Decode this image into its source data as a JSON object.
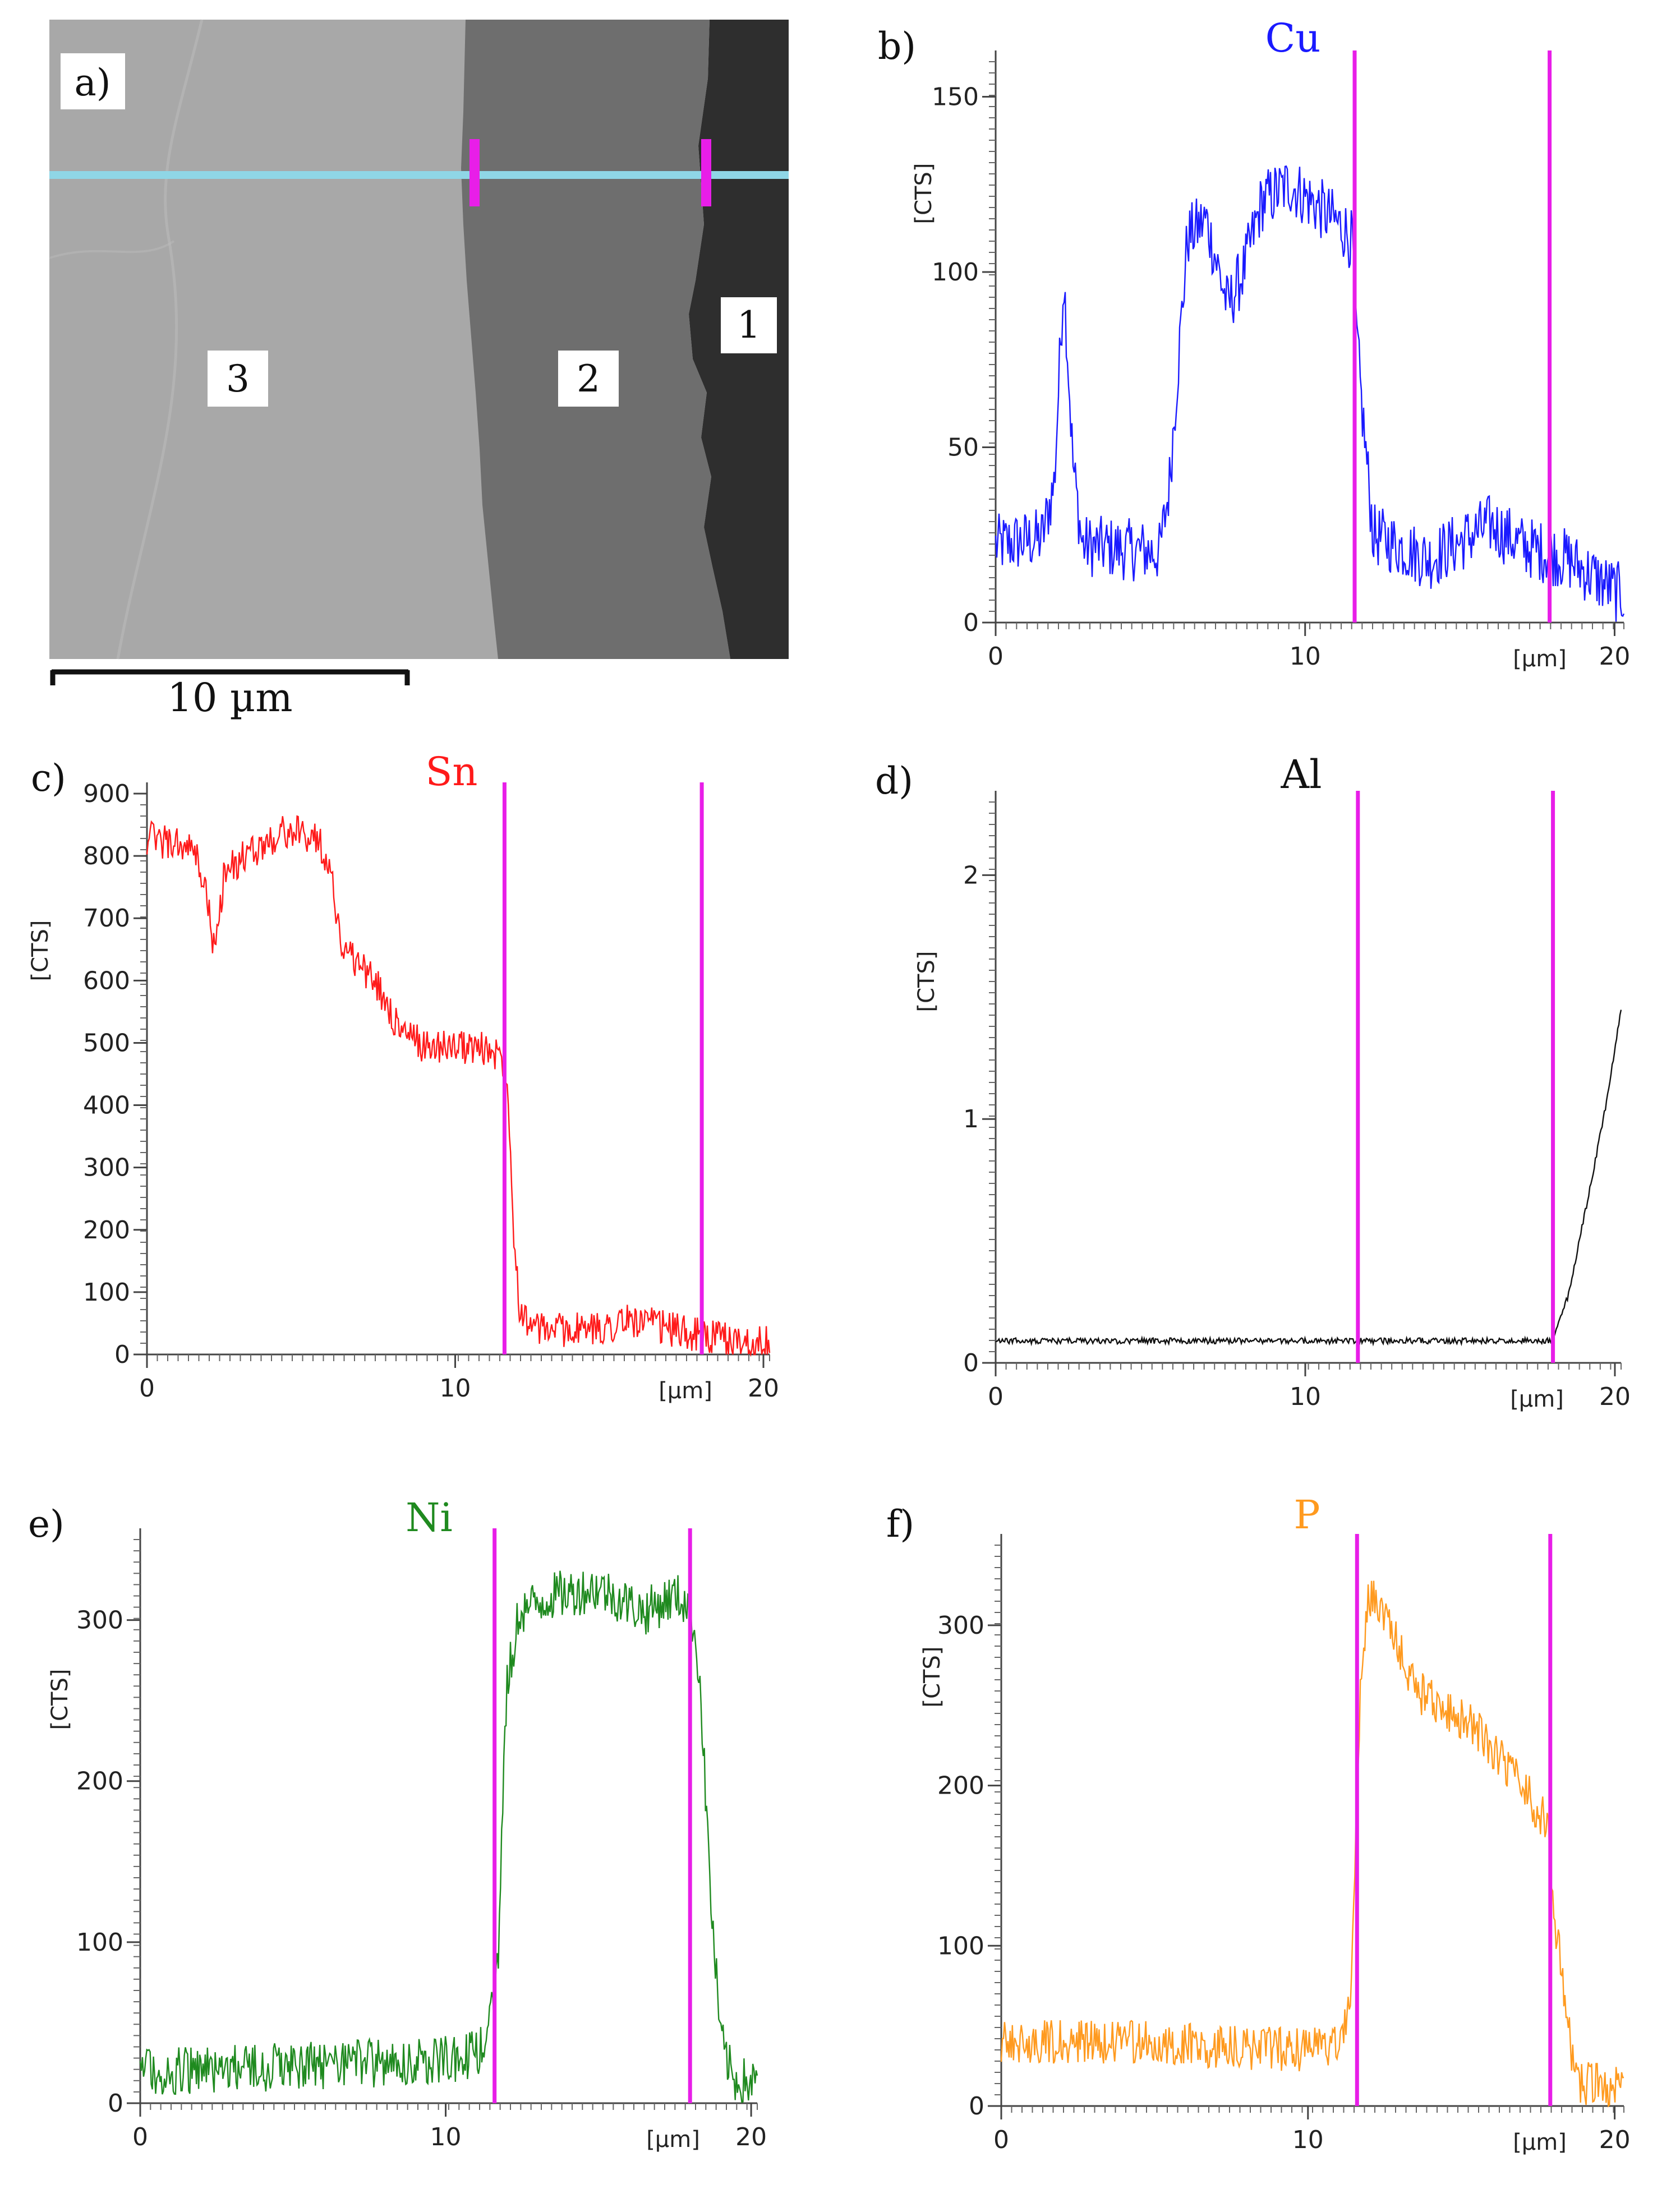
{
  "micrograph": {
    "panel_label": "a)",
    "regions": [
      {
        "label": "3",
        "color": "#a8a8a8"
      },
      {
        "label": "2",
        "color": "#6e6e6e"
      },
      {
        "label": "1",
        "color": "#2e2e2e"
      }
    ],
    "scan_line_color": "#8fd6e6",
    "marker_color": "#e81ee8",
    "scale_bar_label": "10 µm"
  },
  "chart_data": [
    {
      "type": "line",
      "panel_label": "b)",
      "title": "Cu",
      "color": "#1a1aff",
      "ylabel": "[CTS]",
      "xunit": "[µm]",
      "xlim": [
        0,
        20.3
      ],
      "ylim": [
        0,
        160
      ],
      "xticks": [
        0,
        10,
        20
      ],
      "yticks": [
        0,
        50,
        100,
        150
      ],
      "markers": [
        11.6,
        17.9
      ],
      "profile": [
        [
          0,
          22
        ],
        [
          1.5,
          24
        ],
        [
          1.9,
          40
        ],
        [
          2.2,
          100
        ],
        [
          2.5,
          45
        ],
        [
          2.8,
          22
        ],
        [
          5.3,
          20
        ],
        [
          5.6,
          38
        ],
        [
          6.2,
          110
        ],
        [
          6.8,
          115
        ],
        [
          7.5,
          90
        ],
        [
          8,
          100
        ],
        [
          8.6,
          120
        ],
        [
          9.5,
          125
        ],
        [
          10.5,
          118
        ],
        [
          11.3,
          112
        ],
        [
          11.55,
          108
        ],
        [
          11.6,
          90
        ],
        [
          11.8,
          65
        ],
        [
          12.2,
          25
        ],
        [
          14,
          18
        ],
        [
          15.2,
          24
        ],
        [
          16,
          28
        ],
        [
          17,
          22
        ],
        [
          18.5,
          18
        ],
        [
          19.5,
          12
        ],
        [
          20.2,
          8
        ]
      ],
      "noise": 9
    },
    {
      "type": "line",
      "panel_label": "c)",
      "title": "Sn",
      "color": "#ff1a1a",
      "ylabel": "[CTS]",
      "xunit": "[µm]",
      "xlim": [
        0,
        20.2
      ],
      "ylim": [
        0,
        900
      ],
      "xticks": [
        0,
        10,
        20
      ],
      "yticks": [
        0,
        100,
        200,
        300,
        400,
        500,
        600,
        700,
        800,
        900
      ],
      "markers": [
        11.6,
        18
      ],
      "profile": [
        [
          0,
          830
        ],
        [
          1.5,
          810
        ],
        [
          1.9,
          750
        ],
        [
          2.2,
          640
        ],
        [
          2.5,
          770
        ],
        [
          3.2,
          800
        ],
        [
          4.5,
          840
        ],
        [
          5.5,
          830
        ],
        [
          5.9,
          790
        ],
        [
          6.3,
          660
        ],
        [
          7.5,
          590
        ],
        [
          8.2,
          520
        ],
        [
          9,
          495
        ],
        [
          10,
          495
        ],
        [
          11,
          490
        ],
        [
          11.5,
          480
        ],
        [
          11.7,
          440
        ],
        [
          11.9,
          200
        ],
        [
          12.1,
          70
        ],
        [
          12.6,
          40
        ],
        [
          14.5,
          40
        ],
        [
          15.7,
          55
        ],
        [
          16.6,
          45
        ],
        [
          18,
          30
        ],
        [
          19,
          22
        ],
        [
          20.2,
          18
        ]
      ],
      "noise": 28
    },
    {
      "type": "line",
      "panel_label": "d)",
      "title": "Al",
      "color": "#111111",
      "ylabel": "[CTS]",
      "xunit": "[µm]",
      "xlim": [
        0,
        20.2
      ],
      "ylim": [
        0,
        2.3
      ],
      "xticks": [
        0,
        10,
        20
      ],
      "yticks": [
        0,
        1,
        2
      ],
      "markers": [
        11.7,
        18
      ],
      "profile": [
        [
          0,
          0.09
        ],
        [
          18,
          0.09
        ],
        [
          18.5,
          0.28
        ],
        [
          19.2,
          0.72
        ],
        [
          19.7,
          1.05
        ],
        [
          20.2,
          1.45
        ]
      ],
      "noise": 0.012
    },
    {
      "type": "line",
      "panel_label": "e)",
      "title": "Ni",
      "color": "#1f8a1f",
      "ylabel": "[CTS]",
      "xunit": "[µm]",
      "xlim": [
        0,
        20.2
      ],
      "ylim": [
        0,
        350
      ],
      "xticks": [
        0,
        10,
        20
      ],
      "yticks": [
        0,
        100,
        200,
        300
      ],
      "markers": [
        11.6,
        18
      ],
      "profile": [
        [
          0,
          20
        ],
        [
          4,
          22
        ],
        [
          8,
          25
        ],
        [
          10.5,
          28
        ],
        [
          11.3,
          35
        ],
        [
          11.7,
          80
        ],
        [
          12,
          260
        ],
        [
          12.4,
          305
        ],
        [
          13.5,
          315
        ],
        [
          15,
          320
        ],
        [
          16.5,
          305
        ],
        [
          17.5,
          315
        ],
        [
          18,
          310
        ],
        [
          18.3,
          270
        ],
        [
          18.7,
          120
        ],
        [
          19,
          40
        ],
        [
          19.4,
          15
        ],
        [
          20.2,
          12
        ]
      ],
      "noise": 15
    },
    {
      "type": "line",
      "panel_label": "f)",
      "title": "P",
      "color": "#ff9a1f",
      "ylabel": "[CTS]",
      "xunit": "[µm]",
      "xlim": [
        0,
        20.3
      ],
      "ylim": [
        0,
        350
      ],
      "xticks": [
        0,
        10,
        20
      ],
      "yticks": [
        0,
        100,
        200,
        300
      ],
      "markers": [
        11.6,
        17.9
      ],
      "profile": [
        [
          0,
          40
        ],
        [
          5,
          40
        ],
        [
          8,
          36
        ],
        [
          10,
          35
        ],
        [
          11.1,
          38
        ],
        [
          11.35,
          60
        ],
        [
          11.5,
          120
        ],
        [
          11.7,
          260
        ],
        [
          12,
          320
        ],
        [
          12.5,
          305
        ],
        [
          13.5,
          260
        ],
        [
          15.5,
          235
        ],
        [
          17,
          200
        ],
        [
          17.8,
          175
        ],
        [
          18,
          125
        ],
        [
          18.4,
          60
        ],
        [
          18.7,
          15
        ],
        [
          20.3,
          10
        ]
      ],
      "noise": 14
    }
  ]
}
